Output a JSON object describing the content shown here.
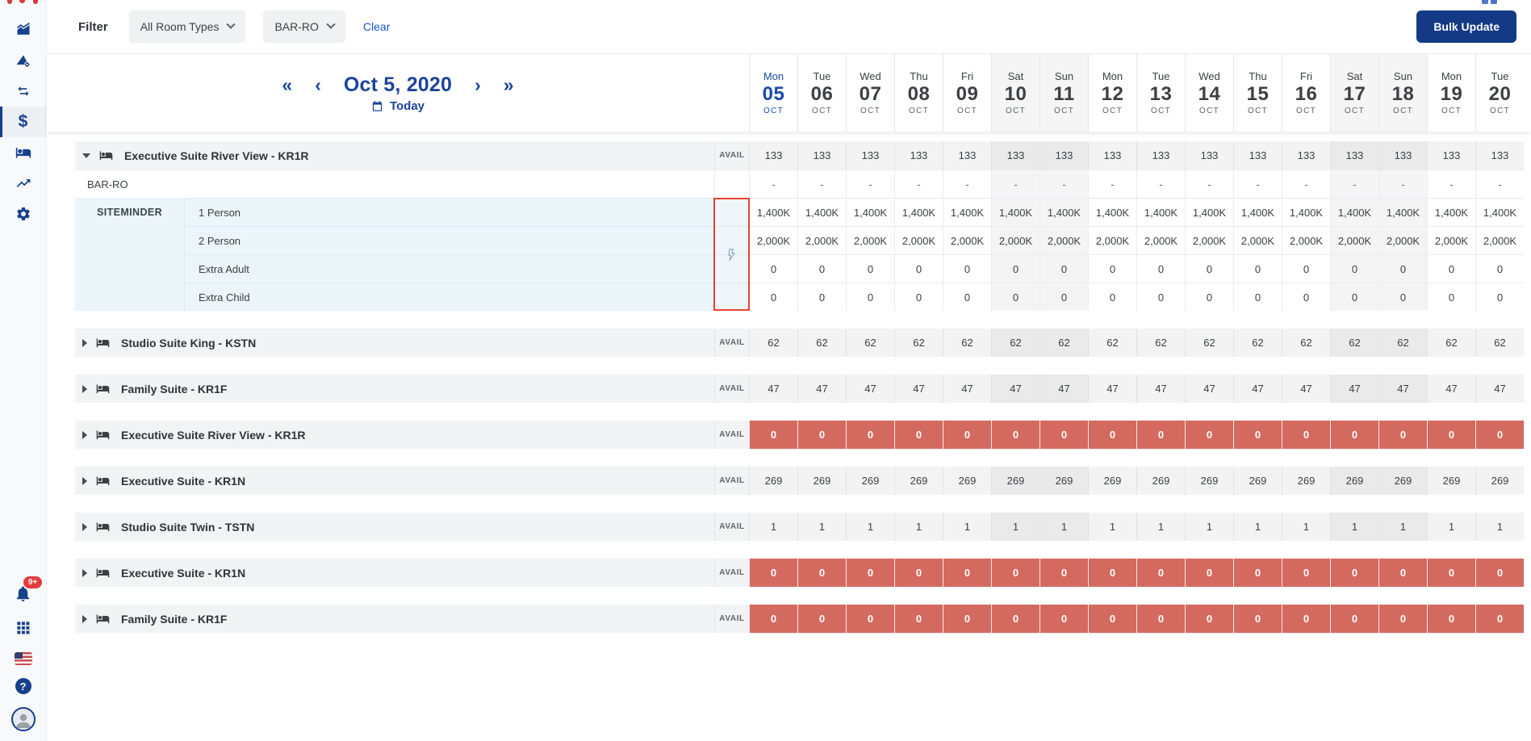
{
  "colors": {
    "accent_navy": "#16418c",
    "button_navy": "#143a85",
    "link_blue": "#1657c8",
    "active_day_blue": "#1a4aa5",
    "sold_out_red": "#d4695f",
    "highlight_border_red": "#e8432e",
    "badge_red": "#e13c3c",
    "channel_block_blue": "#ecf5f9"
  },
  "sidebar": {
    "nav_icons": [
      {
        "icon": "area-chart-icon",
        "active": false
      },
      {
        "icon": "rate-shopper-icon",
        "active": false
      },
      {
        "icon": "sync-arrows-icon",
        "active": false
      },
      {
        "icon": "pricing-dollar-icon",
        "active": true
      },
      {
        "icon": "rooms-bed-icon",
        "active": false
      },
      {
        "icon": "trending-up-icon",
        "active": false
      },
      {
        "icon": "settings-gear-icon",
        "active": false
      }
    ],
    "notifications_badge": "9+"
  },
  "filter_bar": {
    "label": "Filter",
    "room_type_filter": "All Room Types",
    "rate_plan_filter": "BAR-RO",
    "clear_label": "Clear",
    "bulk_update_label": "Bulk Update"
  },
  "date_nav": {
    "fast_back": "«",
    "back": "‹",
    "title": "Oct 5, 2020",
    "forward": "›",
    "fast_forward": "»",
    "today_label": "Today"
  },
  "calendar": {
    "days": [
      {
        "dow": "Mon",
        "date": "05",
        "month": "OCT",
        "active": true,
        "weekend": false
      },
      {
        "dow": "Tue",
        "date": "06",
        "month": "OCT",
        "active": false,
        "weekend": false
      },
      {
        "dow": "Wed",
        "date": "07",
        "month": "OCT",
        "active": false,
        "weekend": false
      },
      {
        "dow": "Thu",
        "date": "08",
        "month": "OCT",
        "active": false,
        "weekend": false
      },
      {
        "dow": "Fri",
        "date": "09",
        "month": "OCT",
        "active": false,
        "weekend": false
      },
      {
        "dow": "Sat",
        "date": "10",
        "month": "OCT",
        "active": false,
        "weekend": true
      },
      {
        "dow": "Sun",
        "date": "11",
        "month": "OCT",
        "active": false,
        "weekend": true
      },
      {
        "dow": "Mon",
        "date": "12",
        "month": "OCT",
        "active": false,
        "weekend": false
      },
      {
        "dow": "Tue",
        "date": "13",
        "month": "OCT",
        "active": false,
        "weekend": false
      },
      {
        "dow": "Wed",
        "date": "14",
        "month": "OCT",
        "active": false,
        "weekend": false
      },
      {
        "dow": "Thu",
        "date": "15",
        "month": "OCT",
        "active": false,
        "weekend": false
      },
      {
        "dow": "Fri",
        "date": "16",
        "month": "OCT",
        "active": false,
        "weekend": false
      },
      {
        "dow": "Sat",
        "date": "17",
        "month": "OCT",
        "active": false,
        "weekend": true
      },
      {
        "dow": "Sun",
        "date": "18",
        "month": "OCT",
        "active": false,
        "weekend": true
      },
      {
        "dow": "Mon",
        "date": "19",
        "month": "OCT",
        "active": false,
        "weekend": false
      },
      {
        "dow": "Tue",
        "date": "20",
        "month": "OCT",
        "active": false,
        "weekend": false
      }
    ]
  },
  "table": {
    "avail_label": "AVAIL",
    "expanded_group": {
      "name": "Executive Suite River View - KR1R",
      "expanded": true,
      "avail": [
        "133",
        "133",
        "133",
        "133",
        "133",
        "133",
        "133",
        "133",
        "133",
        "133",
        "133",
        "133",
        "133",
        "133",
        "133",
        "133"
      ],
      "rate_plan": {
        "name": "BAR-RO",
        "values": [
          "-",
          "-",
          "-",
          "-",
          "-",
          "-",
          "-",
          "-",
          "-",
          "-",
          "-",
          "-",
          "-",
          "-",
          "-",
          "-"
        ]
      },
      "channel": {
        "name": "SITEMINDER",
        "rows": [
          {
            "label": "1 Person",
            "values": [
              "1,400K",
              "1,400K",
              "1,400K",
              "1,400K",
              "1,400K",
              "1,400K",
              "1,400K",
              "1,400K",
              "1,400K",
              "1,400K",
              "1,400K",
              "1,400K",
              "1,400K",
              "1,400K",
              "1,400K",
              "1,400K"
            ]
          },
          {
            "label": "2 Person",
            "values": [
              "2,000K",
              "2,000K",
              "2,000K",
              "2,000K",
              "2,000K",
              "2,000K",
              "2,000K",
              "2,000K",
              "2,000K",
              "2,000K",
              "2,000K",
              "2,000K",
              "2,000K",
              "2,000K",
              "2,000K",
              "2,000K"
            ]
          },
          {
            "label": "Extra Adult",
            "values": [
              "0",
              "0",
              "0",
              "0",
              "0",
              "0",
              "0",
              "0",
              "0",
              "0",
              "0",
              "0",
              "0",
              "0",
              "0",
              "0"
            ]
          },
          {
            "label": "Extra Child",
            "values": [
              "0",
              "0",
              "0",
              "0",
              "0",
              "0",
              "0",
              "0",
              "0",
              "0",
              "0",
              "0",
              "0",
              "0",
              "0",
              "0"
            ]
          }
        ]
      }
    },
    "collapsed_groups": [
      {
        "name": "Studio Suite King - KSTN",
        "sold_out": false,
        "avail": [
          "62",
          "62",
          "62",
          "62",
          "62",
          "62",
          "62",
          "62",
          "62",
          "62",
          "62",
          "62",
          "62",
          "62",
          "62",
          "62"
        ]
      },
      {
        "name": "Family Suite - KR1F",
        "sold_out": false,
        "avail": [
          "47",
          "47",
          "47",
          "47",
          "47",
          "47",
          "47",
          "47",
          "47",
          "47",
          "47",
          "47",
          "47",
          "47",
          "47",
          "47"
        ]
      },
      {
        "name": "Executive Suite River View - KR1R",
        "sold_out": true,
        "avail": [
          "0",
          "0",
          "0",
          "0",
          "0",
          "0",
          "0",
          "0",
          "0",
          "0",
          "0",
          "0",
          "0",
          "0",
          "0",
          "0"
        ]
      },
      {
        "name": "Executive Suite - KR1N",
        "sold_out": false,
        "avail": [
          "269",
          "269",
          "269",
          "269",
          "269",
          "269",
          "269",
          "269",
          "269",
          "269",
          "269",
          "269",
          "269",
          "269",
          "269",
          "269"
        ]
      },
      {
        "name": "Studio Suite Twin - TSTN",
        "sold_out": false,
        "avail": [
          "1",
          "1",
          "1",
          "1",
          "1",
          "1",
          "1",
          "1",
          "1",
          "1",
          "1",
          "1",
          "1",
          "1",
          "1",
          "1"
        ]
      },
      {
        "name": "Executive Suite - KR1N",
        "sold_out": true,
        "avail": [
          "0",
          "0",
          "0",
          "0",
          "0",
          "0",
          "0",
          "0",
          "0",
          "0",
          "0",
          "0",
          "0",
          "0",
          "0",
          "0"
        ]
      },
      {
        "name": "Family Suite - KR1F",
        "sold_out": true,
        "avail": [
          "0",
          "0",
          "0",
          "0",
          "0",
          "0",
          "0",
          "0",
          "0",
          "0",
          "0",
          "0",
          "0",
          "0",
          "0",
          "0"
        ]
      }
    ]
  }
}
